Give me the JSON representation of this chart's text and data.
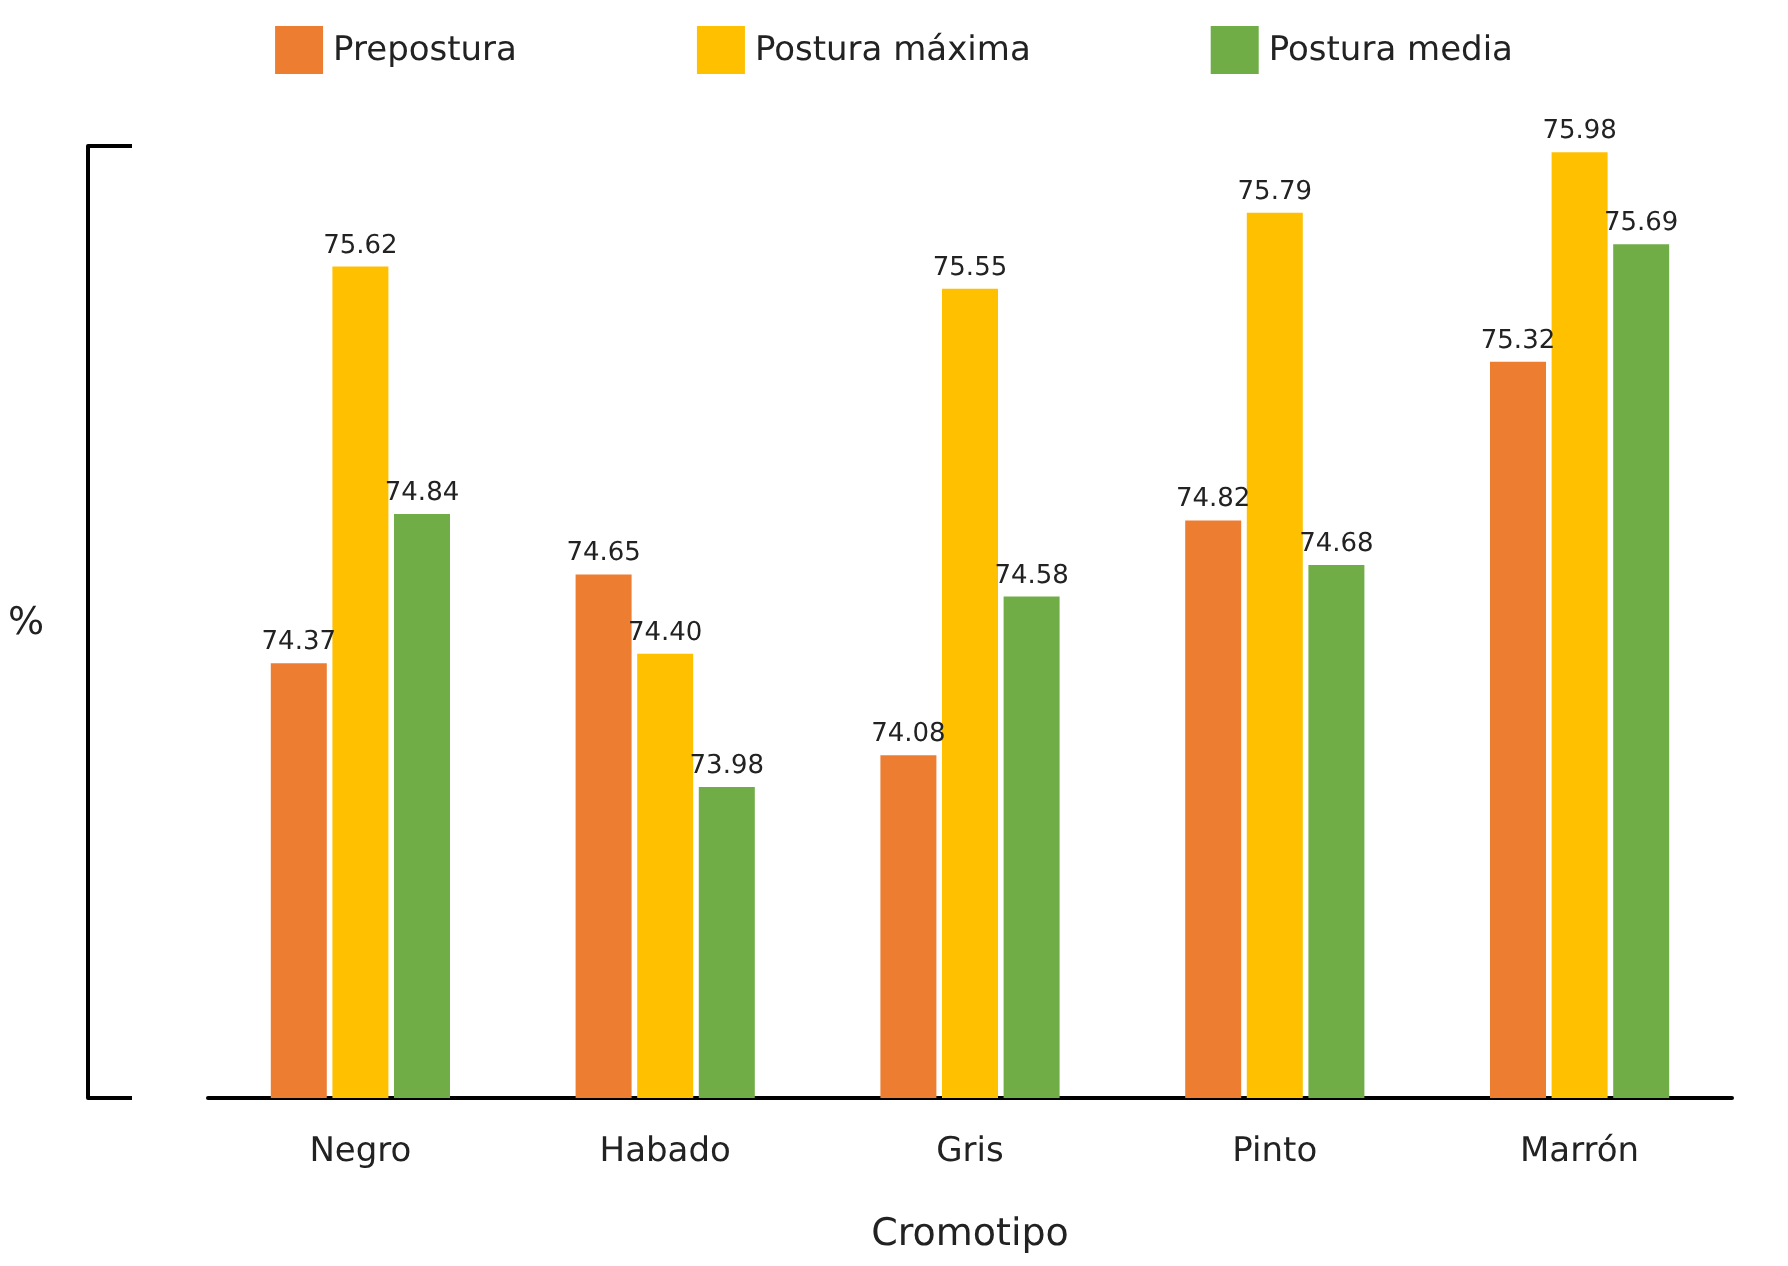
{
  "chart_data": {
    "type": "bar",
    "xlabel": "Cromotipo",
    "ylabel": "%",
    "categories": [
      "Negro",
      "Habado",
      "Gris",
      "Pinto",
      "Marrón"
    ],
    "series": [
      {
        "name": "Prepostura",
        "color": "#ed7d31",
        "values": [
          74.37,
          74.65,
          74.08,
          74.82,
          75.32
        ],
        "value_labels": [
          "74.37",
          "74.65",
          "74.08",
          "74.82",
          "75.32"
        ]
      },
      {
        "name": "Postura máxima",
        "color": "#ffc000",
        "values": [
          75.62,
          74.4,
          75.55,
          75.79,
          75.98
        ],
        "value_labels": [
          "75.62",
          "74.40",
          "75.55",
          "75.79",
          "75.98"
        ]
      },
      {
        "name": "Postura media",
        "color": "#70ad47",
        "values": [
          74.84,
          73.98,
          74.58,
          74.68,
          75.69
        ],
        "value_labels": [
          "74.84",
          "73.98",
          "74.58",
          "74.68",
          "75.69"
        ]
      }
    ],
    "ylim": [
      73,
      76
    ],
    "tick_labels": "x",
    "grid": false,
    "legend": "top"
  }
}
